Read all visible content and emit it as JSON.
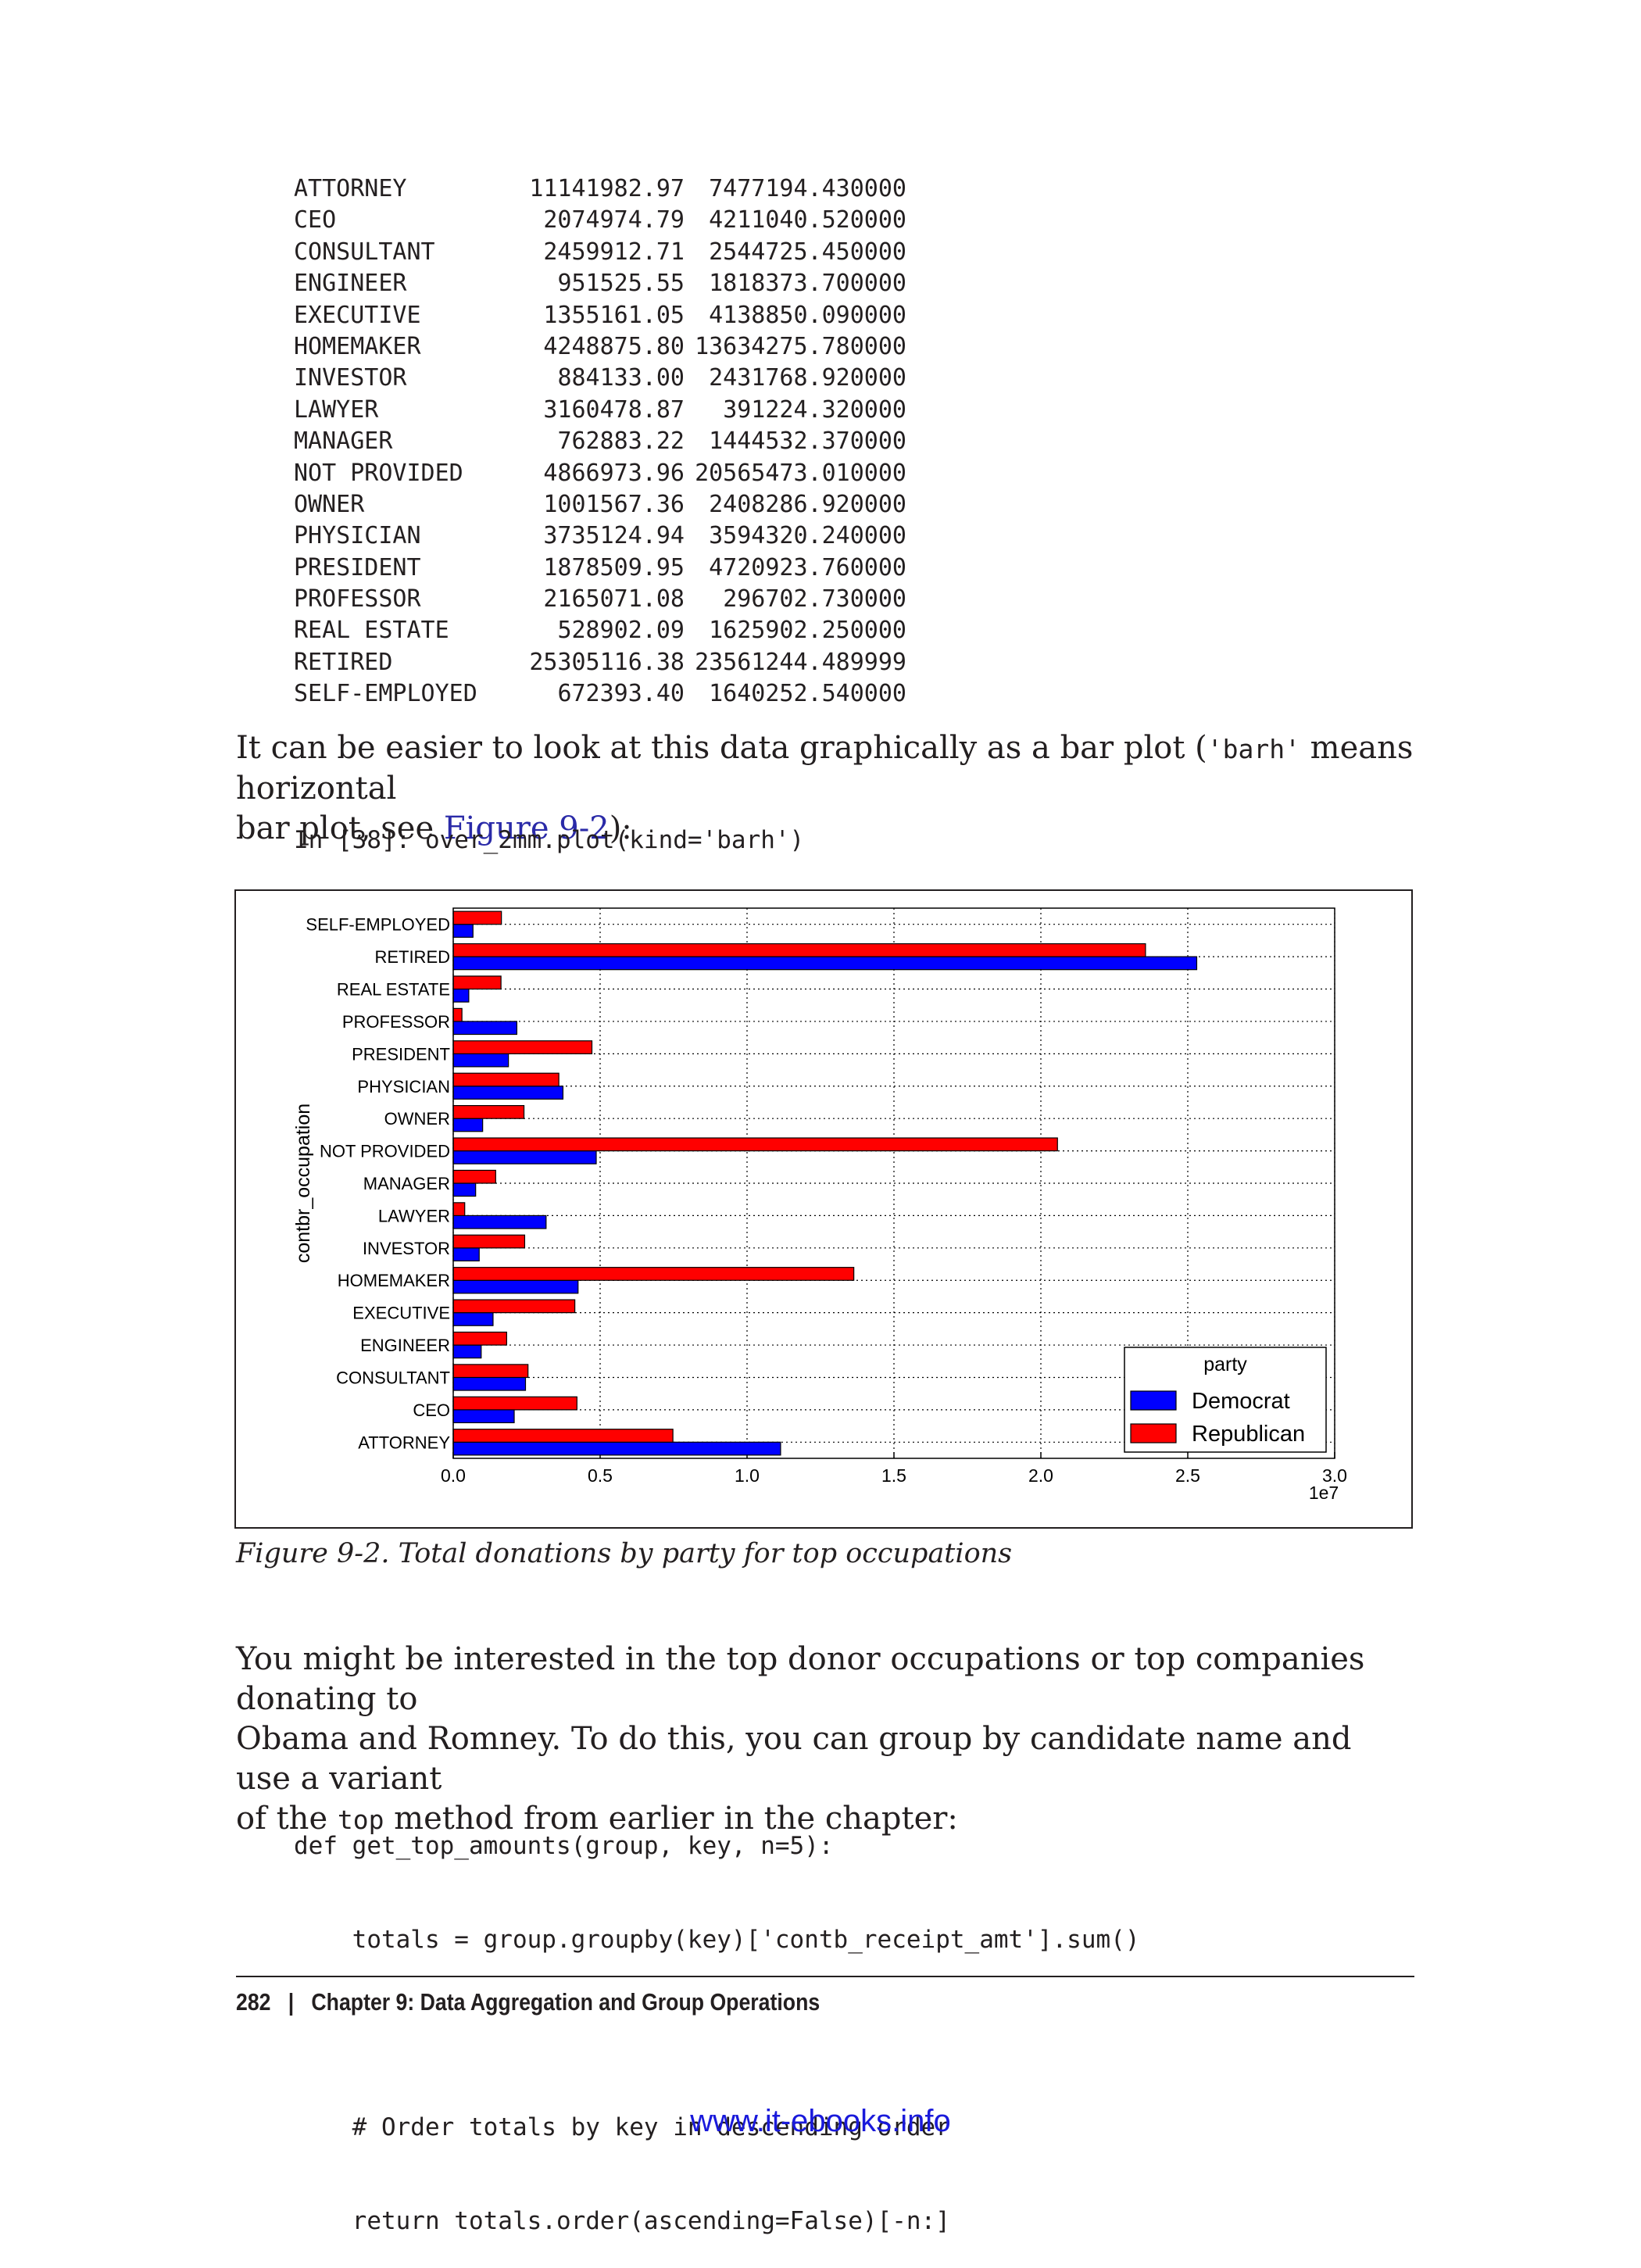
{
  "table": {
    "rows": [
      {
        "name": "ATTORNEY",
        "dem": "11141982.97",
        "rep": "7477194.430000"
      },
      {
        "name": "CEO",
        "dem": "2074974.79",
        "rep": "4211040.520000"
      },
      {
        "name": "CONSULTANT",
        "dem": "2459912.71",
        "rep": "2544725.450000"
      },
      {
        "name": "ENGINEER",
        "dem": "951525.55",
        "rep": "1818373.700000"
      },
      {
        "name": "EXECUTIVE",
        "dem": "1355161.05",
        "rep": "4138850.090000"
      },
      {
        "name": "HOMEMAKER",
        "dem": "4248875.80",
        "rep": "13634275.780000"
      },
      {
        "name": "INVESTOR",
        "dem": "884133.00",
        "rep": "2431768.920000"
      },
      {
        "name": "LAWYER",
        "dem": "3160478.87",
        "rep": "391224.320000"
      },
      {
        "name": "MANAGER",
        "dem": "762883.22",
        "rep": "1444532.370000"
      },
      {
        "name": "NOT PROVIDED",
        "dem": "4866973.96",
        "rep": "20565473.010000"
      },
      {
        "name": "OWNER",
        "dem": "1001567.36",
        "rep": "2408286.920000"
      },
      {
        "name": "PHYSICIAN",
        "dem": "3735124.94",
        "rep": "3594320.240000"
      },
      {
        "name": "PRESIDENT",
        "dem": "1878509.95",
        "rep": "4720923.760000"
      },
      {
        "name": "PROFESSOR",
        "dem": "2165071.08",
        "rep": "296702.730000"
      },
      {
        "name": "REAL ESTATE",
        "dem": "528902.09",
        "rep": "1625902.250000"
      },
      {
        "name": "RETIRED",
        "dem": "25305116.38",
        "rep": "23561244.489999"
      },
      {
        "name": "SELF-EMPLOYED",
        "dem": "672393.40",
        "rep": "1640252.540000"
      }
    ]
  },
  "para1": {
    "part1": "It can be easier to look at this data graphically as a bar plot (",
    "code": "'barh'",
    "part2": " means horizontal",
    "line2_a": "bar plot, see ",
    "link": "Figure 9-2",
    "line2_b": "):"
  },
  "code1": "In [38]: over_2mm.plot(kind='barh')",
  "chart_data": {
    "type": "bar",
    "orientation": "horizontal",
    "ylabel": "contbr_occupation",
    "xlabel": "",
    "x_offset_label": "1e7",
    "xlim": [
      0,
      3.0
    ],
    "x_ticks": [
      "0.0",
      "0.5",
      "1.0",
      "1.5",
      "2.0",
      "2.5",
      "3.0"
    ],
    "grid": true,
    "legend_title": "party",
    "legend_position": "lower-right",
    "categories": [
      "ATTORNEY",
      "CEO",
      "CONSULTANT",
      "ENGINEER",
      "EXECUTIVE",
      "HOMEMAKER",
      "INVESTOR",
      "LAWYER",
      "MANAGER",
      "NOT PROVIDED",
      "OWNER",
      "PHYSICIAN",
      "PRESIDENT",
      "PROFESSOR",
      "REAL ESTATE",
      "RETIRED",
      "SELF-EMPLOYED"
    ],
    "series": [
      {
        "name": "Democrat",
        "color": "#0000ff",
        "values": [
          1.114198297,
          0.207497479,
          0.245991271,
          0.095152555,
          0.135516105,
          0.42488758,
          0.0884133,
          0.316047887,
          0.076288322,
          0.486697396,
          0.100156736,
          0.373512494,
          0.187850995,
          0.216507108,
          0.052890209,
          2.530511638,
          0.06723934
        ]
      },
      {
        "name": "Republican",
        "color": "#ff0000",
        "values": [
          0.747719443,
          0.421104052,
          0.254472545,
          0.18183737,
          0.413885009,
          1.363427578,
          0.243176892,
          0.039122432,
          0.144453237,
          2.056547301,
          0.240828692,
          0.359432024,
          0.472092376,
          0.029670273,
          0.162590225,
          2.356124449,
          0.164025254
        ]
      }
    ]
  },
  "caption": "Figure 9-2. Total donations by party for top occupations",
  "para2": {
    "line1": "You might be interested in the top donor occupations or top companies donating to",
    "line2": "Obama and Romney. To do this, you can group by candidate name and use a variant",
    "line3_a": "of the ",
    "line3_code": "top",
    "line3_b": " method from earlier in the chapter:"
  },
  "code2": [
    "def get_top_amounts(group, key, n=5):",
    "    totals = group.groupby(key)['contb_receipt_amt'].sum()",
    "",
    "    # Order totals by key in descending order",
    "    return totals.order(ascending=False)[-n:]"
  ],
  "footer": {
    "page": "282",
    "sep": "|",
    "chapter": "Chapter 9: Data Aggregation and Group Operations"
  },
  "watermark": "www.it-ebooks.info"
}
